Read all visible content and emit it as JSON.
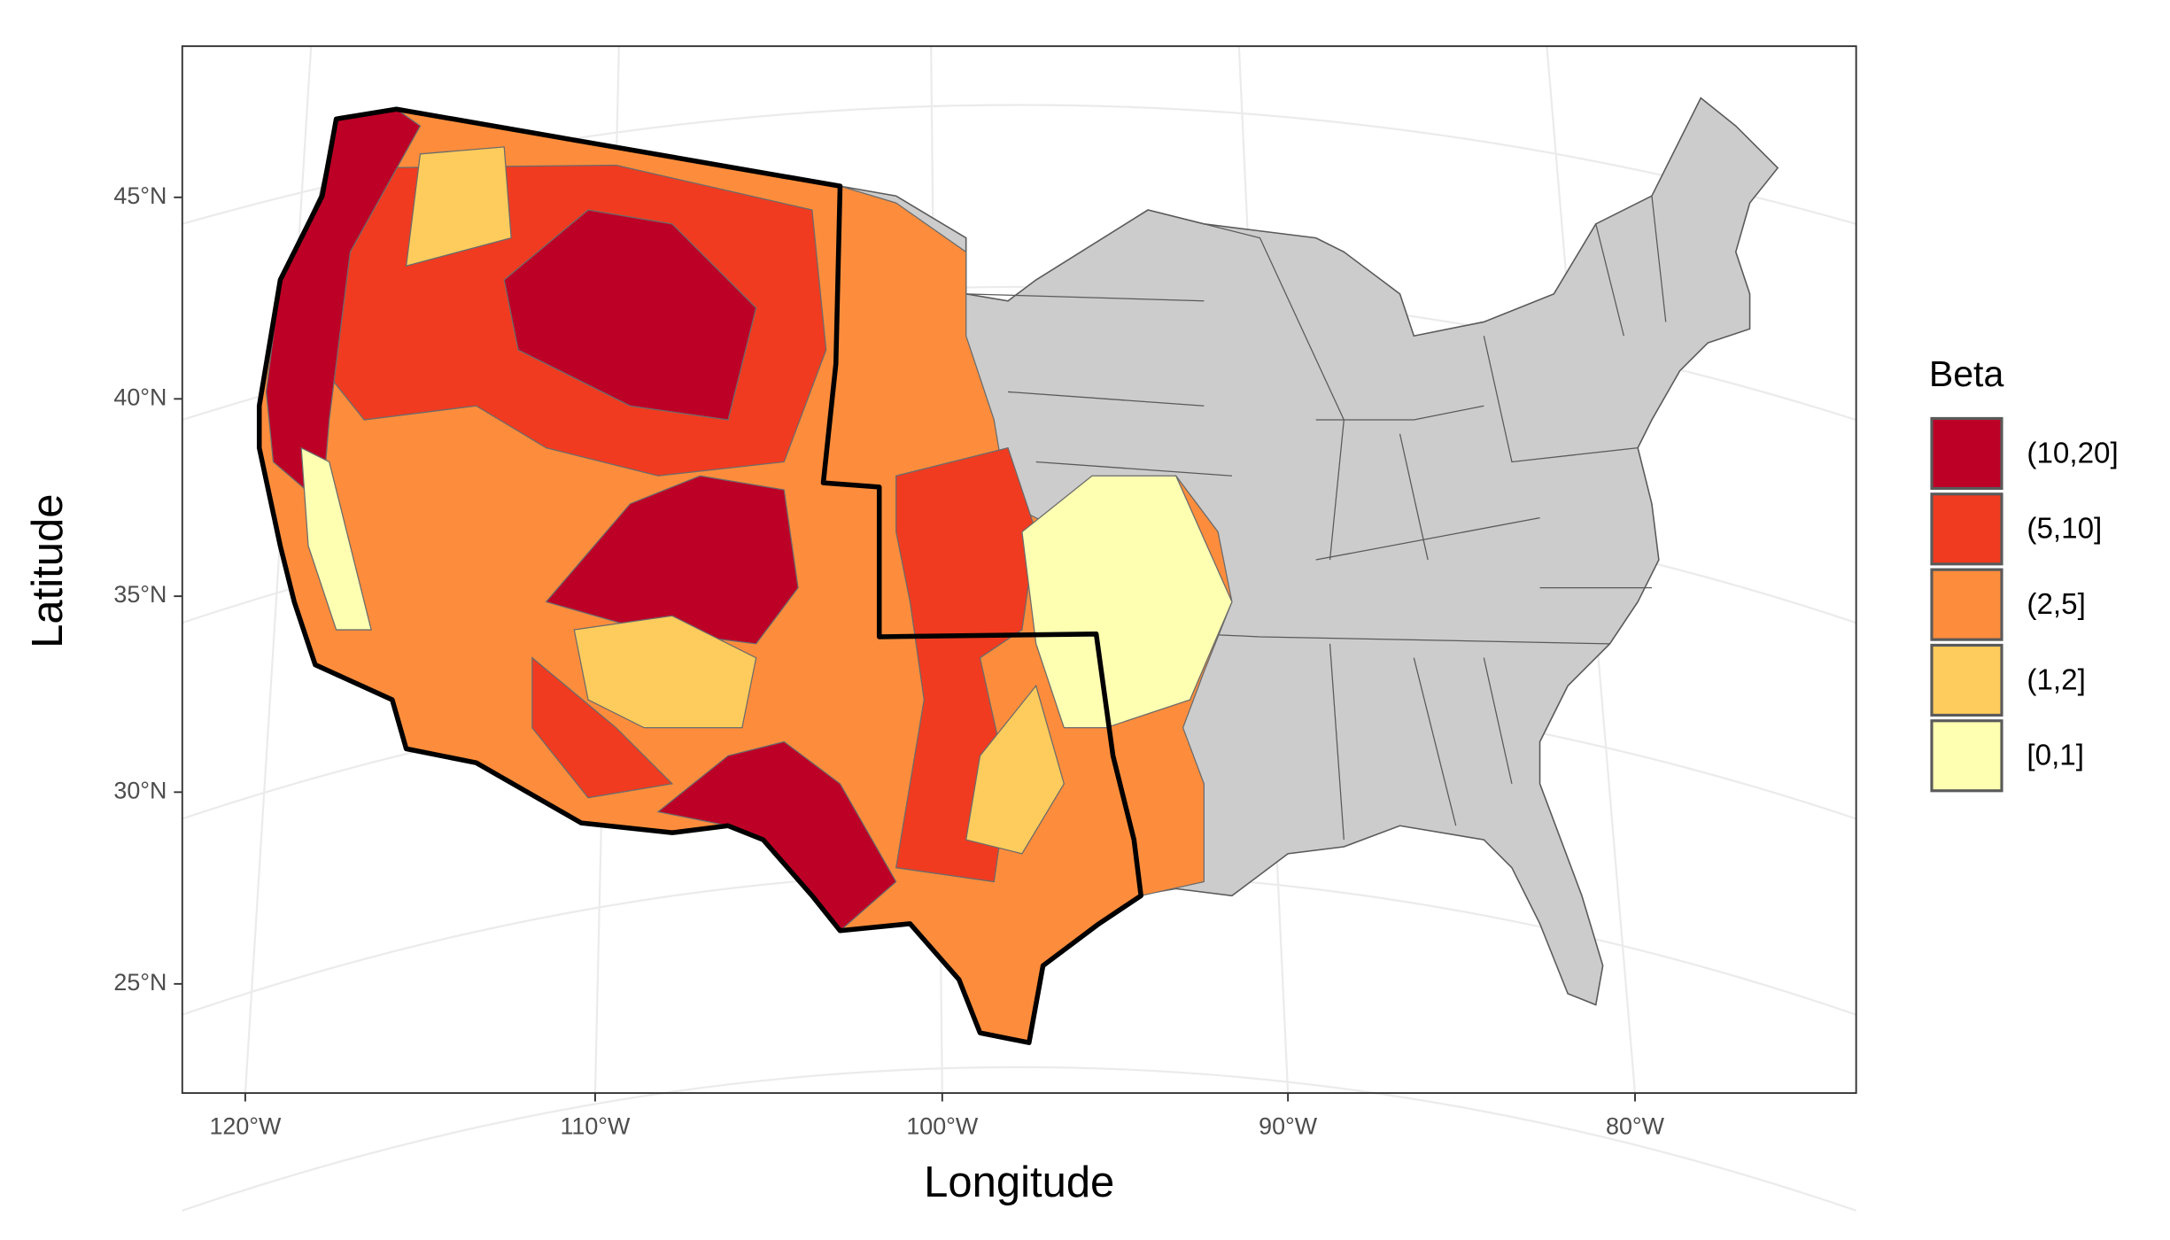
{
  "map": {
    "x_label": "Longitude",
    "y_label": "Latitude",
    "x_ticks": [
      "120°W",
      "110°W",
      "100°W",
      "90°W",
      "80°W"
    ],
    "y_ticks": [
      "45°N",
      "40°N",
      "35°N",
      "30°N",
      "25°N"
    ],
    "legend": {
      "title": "Beta",
      "items": [
        {
          "label": "(10,20]",
          "color": "#bd0026"
        },
        {
          "label": "(5,10]",
          "color": "#f03b20"
        },
        {
          "label": "(2,5]",
          "color": "#fd8d3c"
        },
        {
          "label": "(1,2]",
          "color": "#fecc5c"
        },
        {
          "label": "[0,1]",
          "color": "#ffffb2"
        }
      ]
    }
  }
}
